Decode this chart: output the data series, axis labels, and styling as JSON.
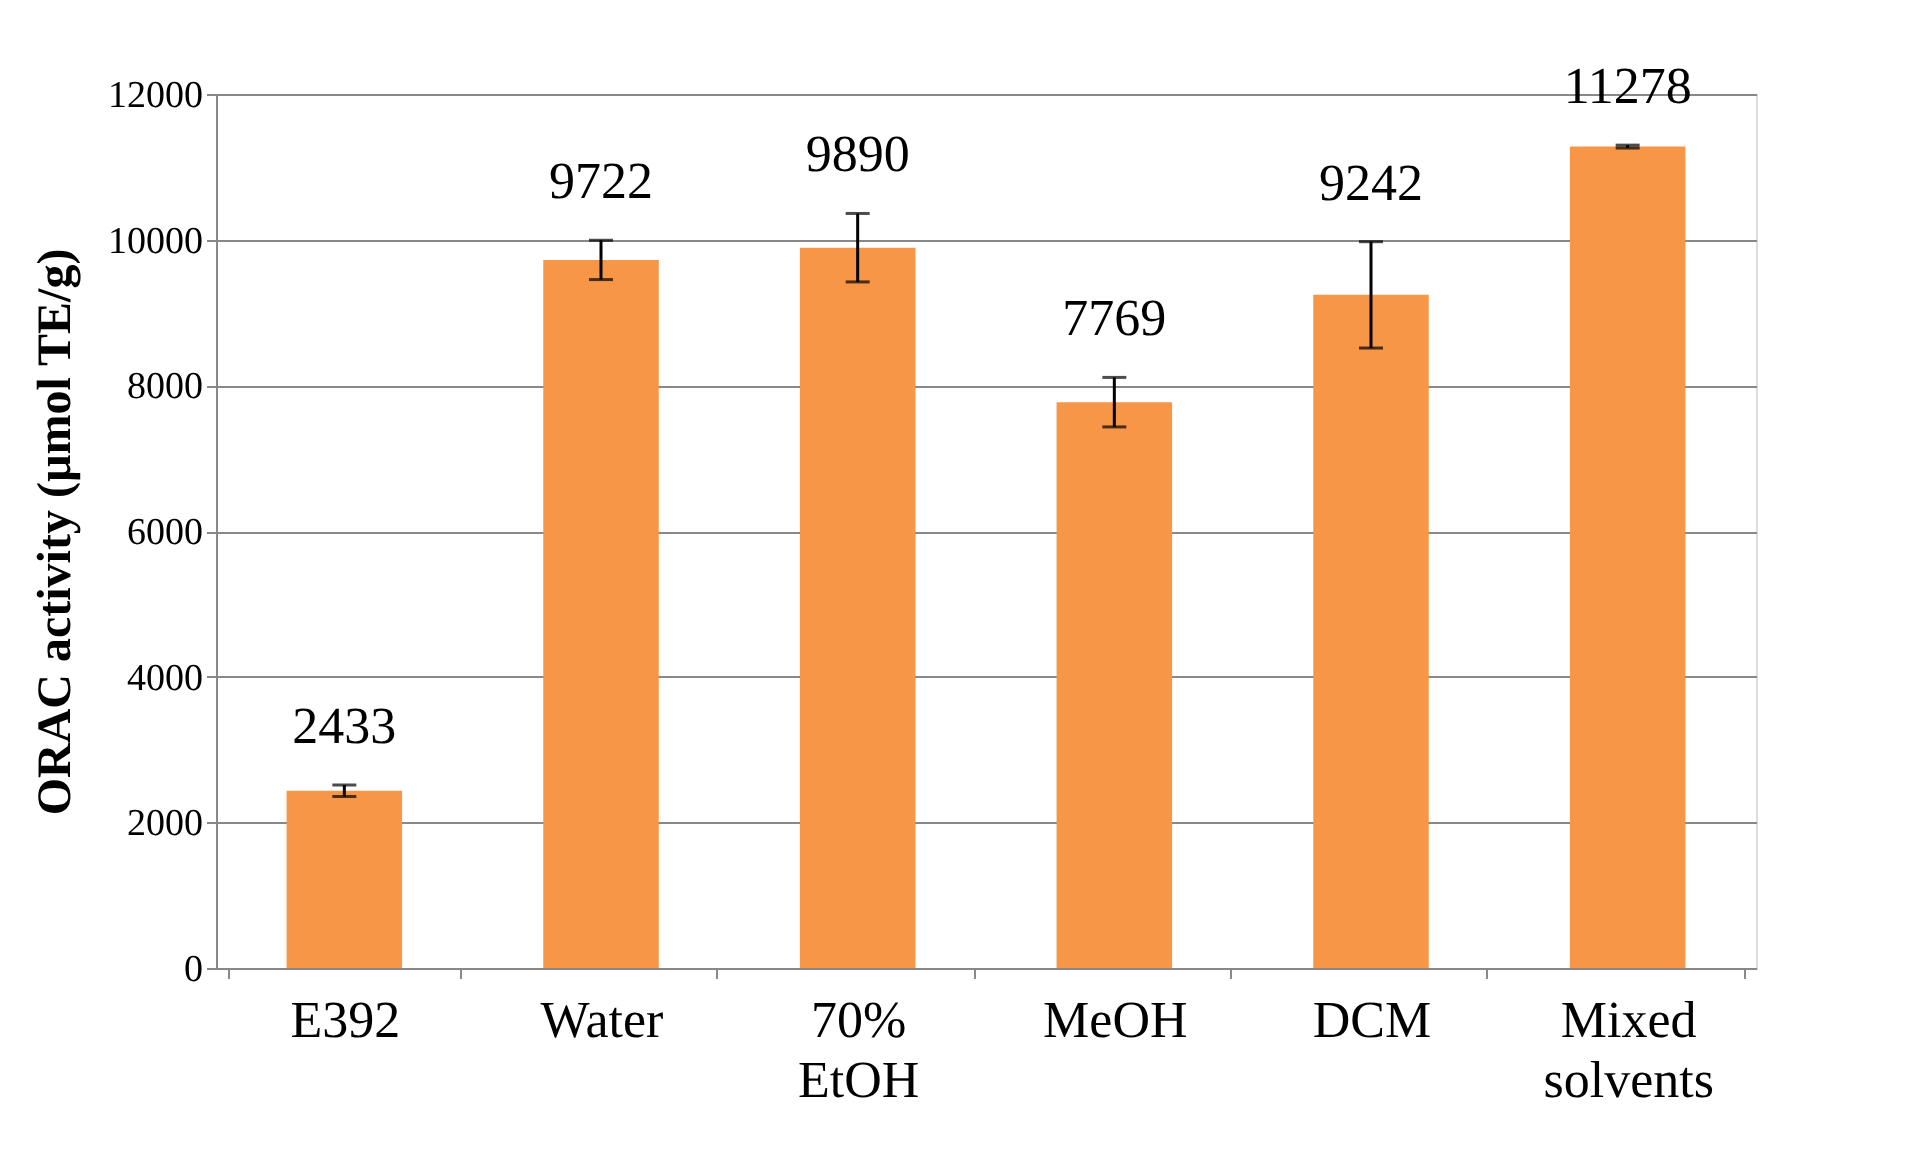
{
  "chart_data": {
    "type": "bar",
    "ylabel": "ORAC activity (µmol TE/g)",
    "categories": [
      "E392",
      "Water",
      "70% EtOH",
      "MeOH",
      "DCM",
      "Mixed solvents"
    ],
    "values": [
      2433,
      9722,
      9890,
      7769,
      9242,
      11278
    ],
    "errors": [
      80,
      270,
      470,
      340,
      730,
      20
    ],
    "color": "#f79646",
    "ylim": [
      0,
      12000
    ],
    "yticks": [
      0,
      2000,
      4000,
      6000,
      8000,
      10000,
      12000
    ],
    "grid": "y",
    "data_labels": true
  }
}
